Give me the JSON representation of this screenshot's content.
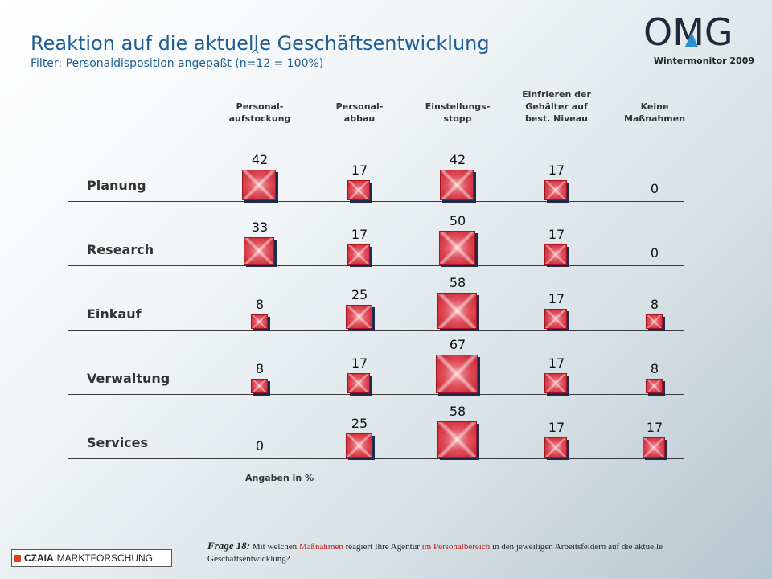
{
  "header": {
    "title": "Reaktion auf die aktuelle Geschäftsentwicklung",
    "subtitle": "Filter: Personaldisposition angepaßt (n=12 = 100%)",
    "caret": "^",
    "logo_text": "OMG",
    "logo_subtitle": "Wintermonitor 2009"
  },
  "footer": {
    "unit_note": "Angaben in %",
    "question_label": "Frage 18:",
    "question_part1": " Mit welchen ",
    "question_hl1": "Maßnahmen",
    "question_part2": " reagiert Ihre Agentur ",
    "question_hl2": "im Personalbereich",
    "question_part3": " in den jeweiligen Arbeitsfeldern auf die aktuelle Geschäftsentwicklung?",
    "brand_bold": "CZAIA",
    "brand_rest": "MARKTFORSCHUNG"
  },
  "colors": {
    "title": "#1f5e94",
    "bar": "#e0505c",
    "highlight": "#c01818",
    "brand_square": "#e0401a"
  },
  "chart_data": {
    "type": "table",
    "columns": [
      [
        "Personal-",
        "aufstockung"
      ],
      [
        "Personal-",
        "abbau"
      ],
      [
        "Einstellungs-",
        "stopp"
      ],
      [
        "Einfrieren der",
        "Gehälter auf",
        "best. Niveau"
      ],
      [
        "Keine",
        "Maßnahmen"
      ]
    ],
    "rows": [
      "Planung",
      "Research",
      "Einkauf",
      "Verwaltung",
      "Services"
    ],
    "values": [
      [
        42,
        17,
        42,
        17,
        0
      ],
      [
        33,
        17,
        50,
        17,
        0
      ],
      [
        8,
        25,
        58,
        17,
        8
      ],
      [
        8,
        17,
        67,
        17,
        8
      ],
      [
        0,
        25,
        58,
        17,
        17
      ]
    ],
    "unit": "%"
  }
}
